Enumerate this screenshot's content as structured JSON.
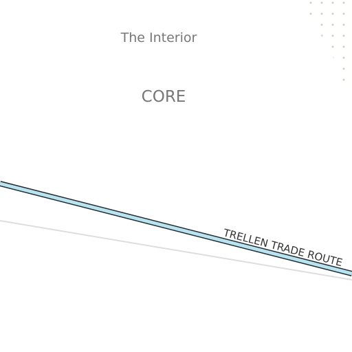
{
  "map": {
    "labels": {
      "region": "The Interior",
      "sector": "CORE",
      "route": "TRELLEN TRADE ROUTE"
    },
    "colors": {
      "background": "#ffffff",
      "label_text": "#777777",
      "route_fill": "#b9e3ef",
      "route_outline": "#1f2a30",
      "secondary_line": "#dddddd",
      "dot_pattern": "#d9d2c2"
    },
    "features": [
      {
        "name": "trellen-trade-route",
        "kind": "hyperspace-lane"
      },
      {
        "name": "secondary-route-line",
        "kind": "faint-line"
      },
      {
        "name": "dotted-region",
        "kind": "stippled-area"
      }
    ]
  }
}
